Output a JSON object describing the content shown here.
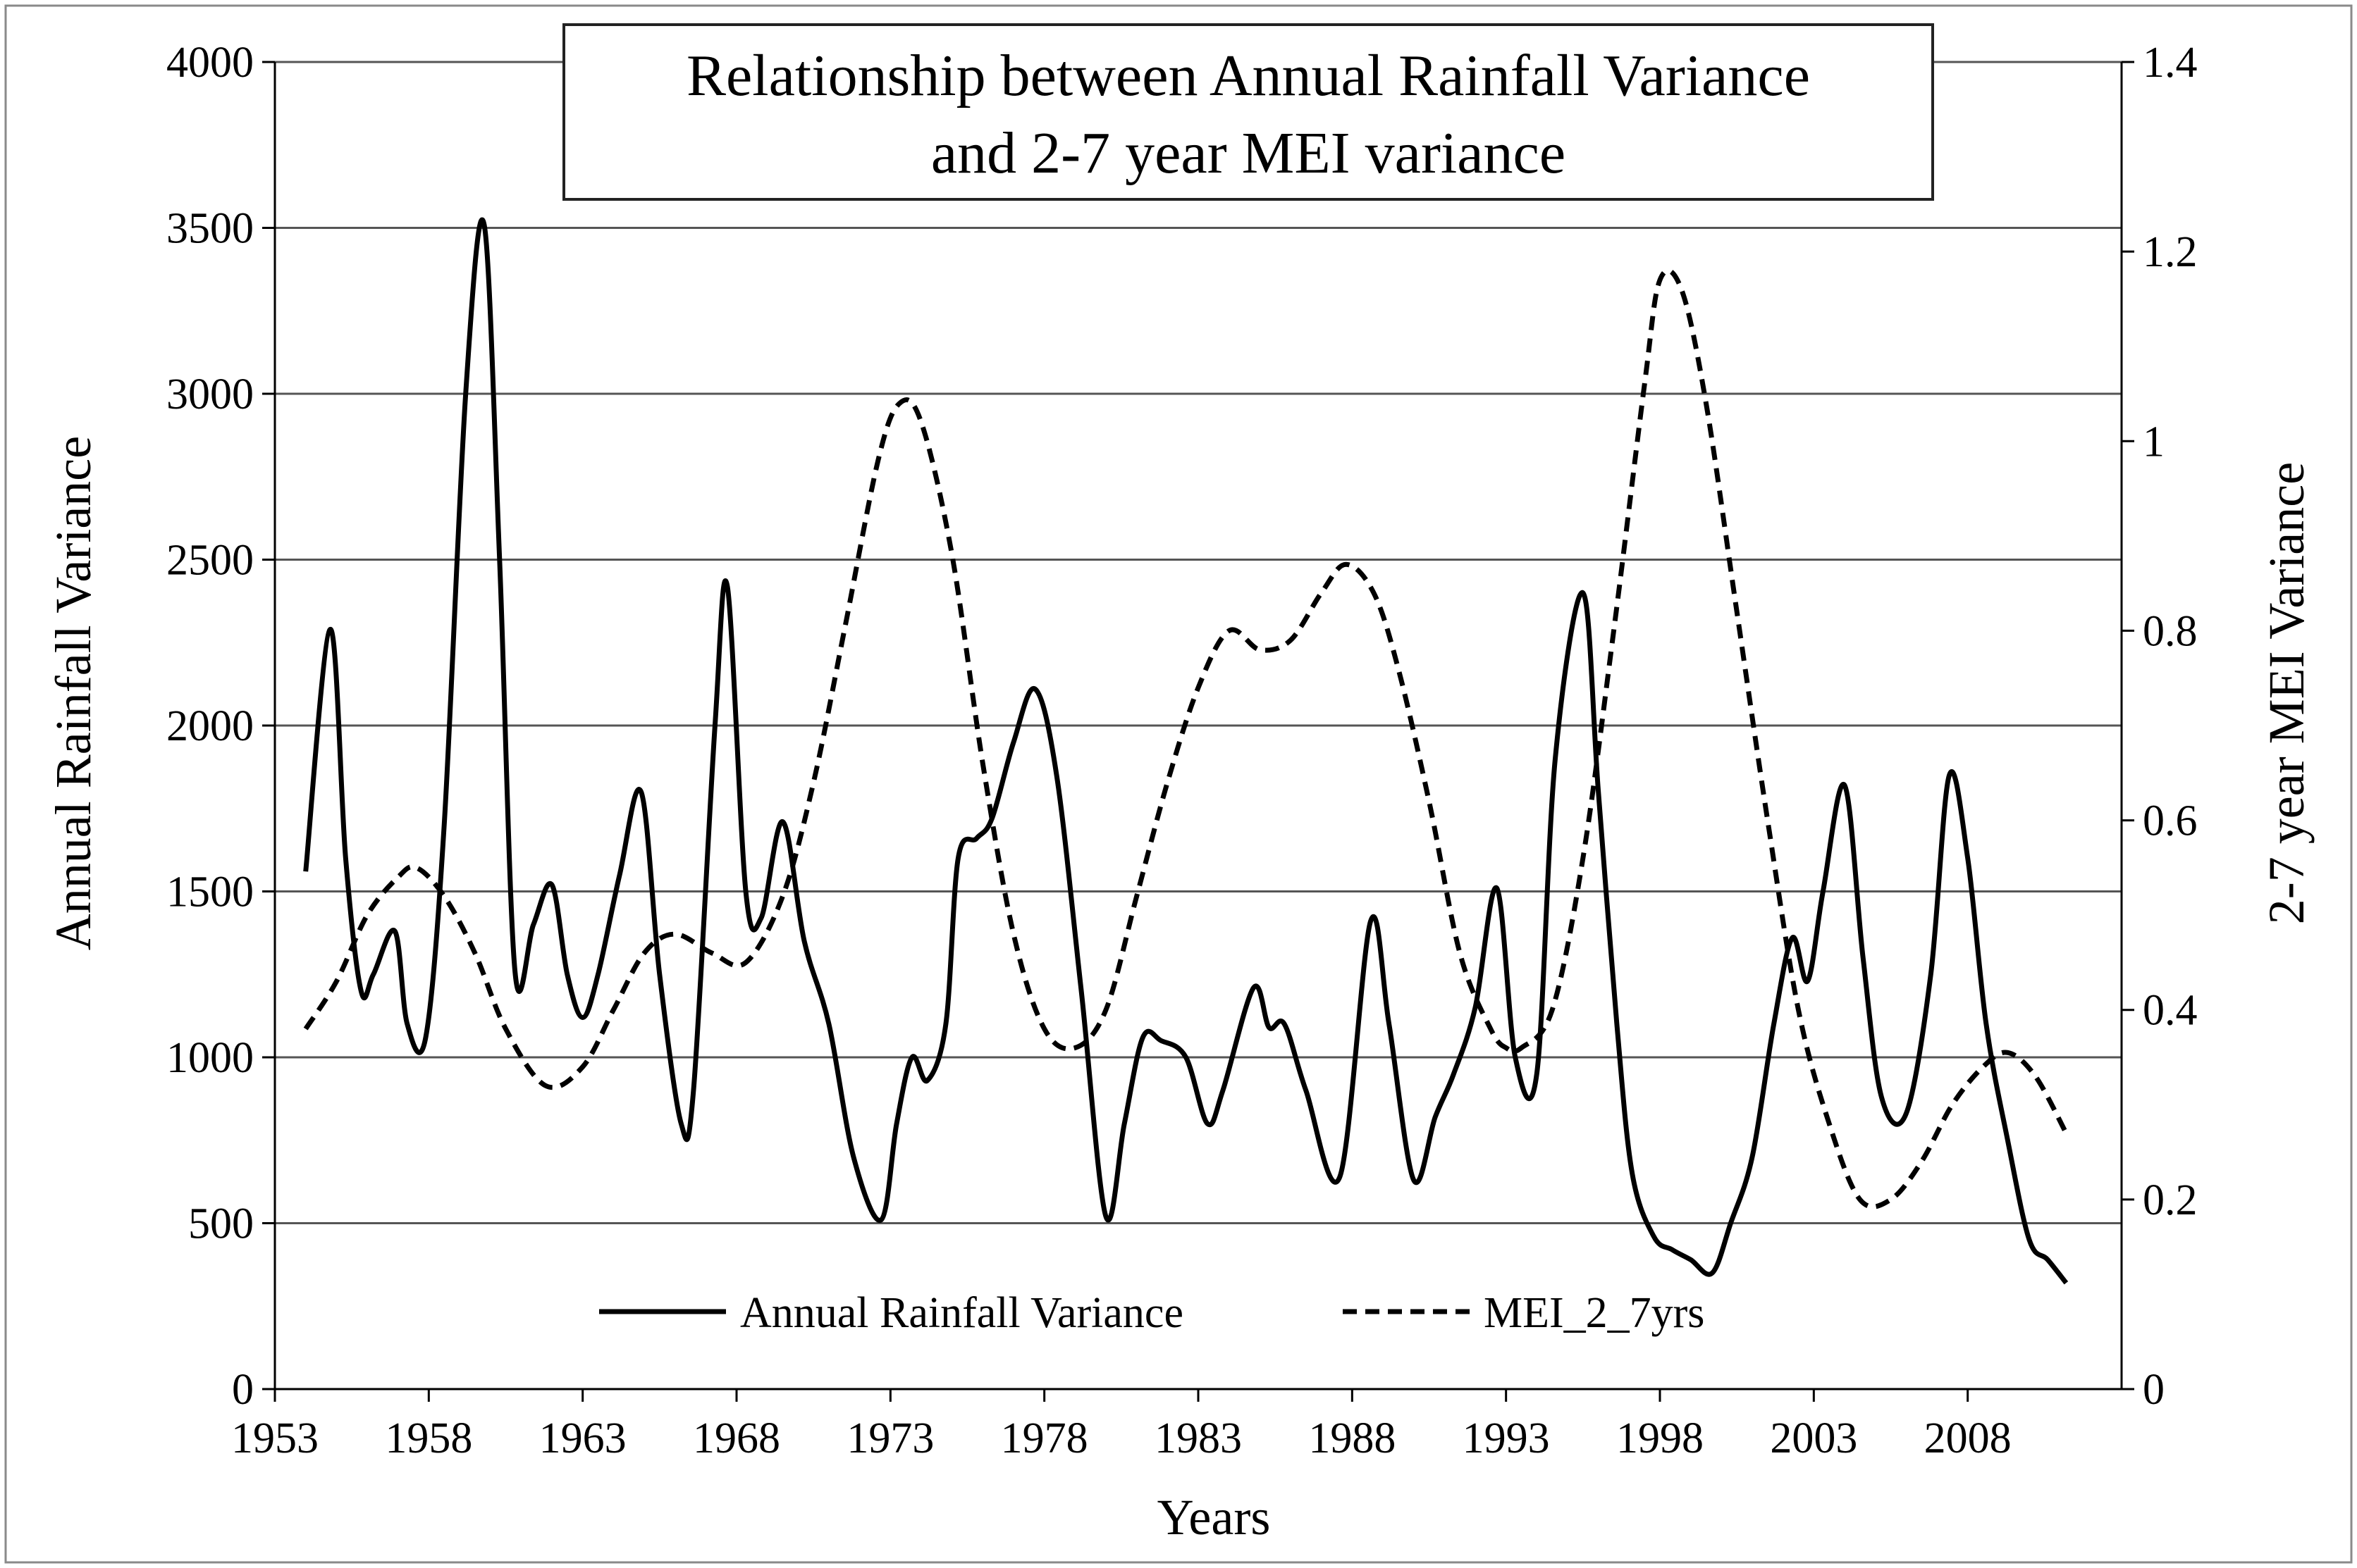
{
  "chart_data": {
    "type": "line",
    "title": [
      "Relationship between Annual Rainfall Variance",
      "and 2-7 year MEI variance"
    ],
    "xlabel": "Years",
    "ylabel": "Annual Rainfall Variance",
    "y2label": "2-7 year MEI Variance",
    "xlim": [
      1953,
      2013
    ],
    "ylim": [
      0,
      4000
    ],
    "y2lim": [
      0,
      1.4
    ],
    "x_ticks": [
      1953,
      1958,
      1963,
      1968,
      1973,
      1978,
      1983,
      1988,
      1993,
      1998,
      2003,
      2008
    ],
    "y_ticks": [
      0,
      500,
      1000,
      1500,
      2000,
      2500,
      3000,
      3500,
      4000
    ],
    "y2_ticks": [
      "0",
      "0.2",
      "0.4",
      "0.6",
      "0.8",
      "1",
      "1.2",
      "1.4"
    ],
    "grid": "horizontal",
    "legend_position": "bottom-center",
    "series": [
      {
        "name": "Annual Rainfall Variance",
        "axis": "left",
        "style": "solid",
        "x": [
          1954,
          1954.8,
          1955.3,
          1955.8,
          1956.2,
          1956.9,
          1957.3,
          1957.9,
          1958.5,
          1959.2,
          1959.8,
          1960.3,
          1960.8,
          1961.4,
          1962,
          1962.5,
          1963,
          1963.5,
          1964.2,
          1964.9,
          1965.5,
          1966.2,
          1966.6,
          1967.3,
          1967.7,
          1968.3,
          1968.8,
          1969.5,
          1970.2,
          1971,
          1971.8,
          1972.7,
          1973.2,
          1973.7,
          1974.2,
          1974.8,
          1975.2,
          1975.8,
          1976.3,
          1977,
          1977.7,
          1978.4,
          1979.2,
          1980,
          1980.6,
          1981.2,
          1981.8,
          1982.6,
          1983.3,
          1983.8,
          1984.8,
          1985.3,
          1985.8,
          1986.5,
          1987.6,
          1988.6,
          1989.2,
          1990,
          1990.7,
          1991.3,
          1992,
          1992.7,
          1993.3,
          1994,
          1994.6,
          1995.5,
          1996,
          1996.6,
          1997.1,
          1997.8,
          1998.4,
          1999,
          1999.7,
          2000.3,
          2001,
          2001.7,
          2002.3,
          2002.8,
          2003.3,
          2004,
          2004.6,
          2005.2,
          2006,
          2006.8,
          2007.4,
          2008,
          2008.6,
          2009.3,
          2010,
          2010.6,
          2011.2
        ],
        "y": [
          1560,
          2290,
          1600,
          1200,
          1250,
          1380,
          1100,
          1060,
          1700,
          3000,
          3510,
          2500,
          1260,
          1400,
          1520,
          1250,
          1120,
          1250,
          1550,
          1800,
          1250,
          800,
          900,
          2000,
          2420,
          1500,
          1420,
          1710,
          1350,
          1100,
          700,
          510,
          800,
          1000,
          930,
          1100,
          1600,
          1660,
          1720,
          1950,
          2110,
          1850,
          1200,
          520,
          800,
          1060,
          1050,
          1000,
          800,
          900,
          1210,
          1090,
          1100,
          900,
          640,
          1410,
          1100,
          630,
          820,
          950,
          1150,
          1510,
          1000,
          950,
          1900,
          2400,
          1800,
          1100,
          650,
          460,
          420,
          390,
          350,
          500,
          700,
          1100,
          1360,
          1230,
          1500,
          1820,
          1300,
          880,
          830,
          1250,
          1850,
          1600,
          1100,
          750,
          450,
          390,
          320
        ]
      },
      {
        "name": "MEI_2_7yrs",
        "axis": "right",
        "style": "dashed",
        "x": [
          1954,
          1955,
          1956,
          1957,
          1957.6,
          1958.5,
          1959.5,
          1960.5,
          1961.8,
          1963,
          1964,
          1965,
          1966,
          1967.2,
          1968.3,
          1969.5,
          1970.5,
          1971.5,
          1972.6,
          1973.3,
          1974,
          1975,
          1976,
          1977,
          1978,
          1979,
          1980,
          1981,
          1982,
          1983,
          1984,
          1985,
          1986,
          1987,
          1987.8,
          1988.7,
          1989.5,
          1990.5,
          1991.5,
          1992.5,
          1993,
          1993.5,
          1994.5,
          1995.5,
          1996.5,
          1997.5,
          1998,
          1998.7,
          1999.5,
          2000.5,
          2001.5,
          2002.5,
          2003.5,
          2004.5,
          2005.5,
          2006.5,
          2007.5,
          2008.5,
          2009.3,
          2010.2,
          2011.2
        ],
        "y": [
          0.38,
          0.43,
          0.5,
          0.54,
          0.55,
          0.52,
          0.46,
          0.38,
          0.32,
          0.34,
          0.4,
          0.46,
          0.48,
          0.46,
          0.45,
          0.52,
          0.64,
          0.8,
          0.98,
          1.04,
          1.02,
          0.88,
          0.66,
          0.48,
          0.38,
          0.36,
          0.4,
          0.52,
          0.64,
          0.74,
          0.8,
          0.78,
          0.79,
          0.84,
          0.87,
          0.84,
          0.76,
          0.62,
          0.46,
          0.38,
          0.36,
          0.36,
          0.4,
          0.56,
          0.8,
          1.06,
          1.17,
          1.16,
          1.04,
          0.82,
          0.6,
          0.4,
          0.28,
          0.2,
          0.2,
          0.24,
          0.3,
          0.34,
          0.355,
          0.33,
          0.27
        ]
      }
    ]
  }
}
